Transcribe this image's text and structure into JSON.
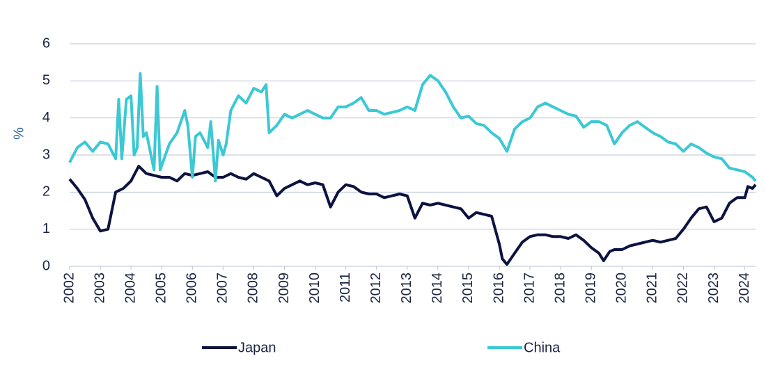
{
  "chart_data": {
    "type": "line",
    "y_label": "%",
    "xlim": [
      2002,
      2024.35
    ],
    "xticks": [
      2002,
      2003,
      2004,
      2005,
      2006,
      2007,
      2008,
      2009,
      2010,
      2011,
      2012,
      2013,
      2014,
      2015,
      2016,
      2017,
      2018,
      2019,
      2020,
      2021,
      2022,
      2023,
      2024
    ],
    "ylim": [
      0,
      6
    ],
    "yticks": [
      0,
      1,
      2,
      3,
      4,
      5,
      6
    ],
    "grid": true,
    "legend": "bottom",
    "series": [
      {
        "name": "Japan",
        "color": "#0d1340",
        "x": [
          2002.0,
          2002.25,
          2002.5,
          2002.75,
          2003.0,
          2003.25,
          2003.5,
          2003.75,
          2004.0,
          2004.25,
          2004.5,
          2004.75,
          2005.0,
          2005.25,
          2005.5,
          2005.75,
          2006.0,
          2006.25,
          2006.5,
          2006.75,
          2007.0,
          2007.25,
          2007.5,
          2007.75,
          2008.0,
          2008.25,
          2008.5,
          2008.75,
          2009.0,
          2009.25,
          2009.5,
          2009.75,
          2010.0,
          2010.25,
          2010.5,
          2010.75,
          2011.0,
          2011.25,
          2011.5,
          2011.75,
          2012.0,
          2012.25,
          2012.5,
          2012.75,
          2013.0,
          2013.25,
          2013.5,
          2013.75,
          2014.0,
          2014.25,
          2014.5,
          2014.75,
          2015.0,
          2015.25,
          2015.5,
          2015.75,
          2016.0,
          2016.1,
          2016.25,
          2016.5,
          2016.75,
          2017.0,
          2017.25,
          2017.5,
          2017.75,
          2018.0,
          2018.25,
          2018.5,
          2018.75,
          2019.0,
          2019.25,
          2019.4,
          2019.6,
          2019.75,
          2020.0,
          2020.25,
          2020.5,
          2020.75,
          2021.0,
          2021.25,
          2021.5,
          2021.75,
          2022.0,
          2022.25,
          2022.5,
          2022.75,
          2023.0,
          2023.25,
          2023.5,
          2023.75,
          2024.0,
          2024.1,
          2024.25,
          2024.35
        ],
        "values": [
          2.35,
          2.1,
          1.8,
          1.3,
          0.95,
          1.0,
          2.0,
          2.1,
          2.3,
          2.7,
          2.5,
          2.45,
          2.4,
          2.4,
          2.3,
          2.5,
          2.45,
          2.5,
          2.55,
          2.4,
          2.4,
          2.5,
          2.4,
          2.35,
          2.5,
          2.4,
          2.3,
          1.9,
          2.1,
          2.2,
          2.3,
          2.2,
          2.25,
          2.2,
          1.6,
          2.0,
          2.2,
          2.15,
          2.0,
          1.95,
          1.95,
          1.85,
          1.9,
          1.95,
          1.9,
          1.3,
          1.7,
          1.65,
          1.7,
          1.65,
          1.6,
          1.55,
          1.3,
          1.45,
          1.4,
          1.35,
          0.6,
          0.2,
          0.05,
          0.35,
          0.65,
          0.8,
          0.85,
          0.85,
          0.8,
          0.8,
          0.75,
          0.85,
          0.7,
          0.5,
          0.35,
          0.15,
          0.4,
          0.45,
          0.45,
          0.55,
          0.6,
          0.65,
          0.7,
          0.65,
          0.7,
          0.75,
          1.0,
          1.3,
          1.55,
          1.6,
          1.2,
          1.3,
          1.7,
          1.85,
          1.85,
          2.15,
          2.1,
          2.2
        ]
      },
      {
        "name": "China",
        "color": "#3cc8d4",
        "x": [
          2002.0,
          2002.25,
          2002.5,
          2002.75,
          2003.0,
          2003.25,
          2003.5,
          2003.6,
          2003.7,
          2003.85,
          2004.0,
          2004.1,
          2004.2,
          2004.3,
          2004.4,
          2004.5,
          2004.75,
          2004.85,
          2004.95,
          2005.25,
          2005.5,
          2005.75,
          2005.85,
          2006.0,
          2006.1,
          2006.25,
          2006.5,
          2006.6,
          2006.75,
          2006.85,
          2007.0,
          2007.1,
          2007.25,
          2007.5,
          2007.75,
          2008.0,
          2008.25,
          2008.4,
          2008.5,
          2008.75,
          2009.0,
          2009.25,
          2009.5,
          2009.75,
          2010.0,
          2010.25,
          2010.5,
          2010.75,
          2011.0,
          2011.25,
          2011.5,
          2011.75,
          2012.0,
          2012.25,
          2012.5,
          2012.75,
          2013.0,
          2013.25,
          2013.5,
          2013.75,
          2014.0,
          2014.25,
          2014.5,
          2014.75,
          2015.0,
          2015.25,
          2015.5,
          2015.75,
          2016.0,
          2016.25,
          2016.5,
          2016.75,
          2017.0,
          2017.25,
          2017.5,
          2017.75,
          2018.0,
          2018.25,
          2018.5,
          2018.75,
          2019.0,
          2019.25,
          2019.5,
          2019.75,
          2020.0,
          2020.25,
          2020.5,
          2020.75,
          2021.0,
          2021.25,
          2021.5,
          2021.75,
          2022.0,
          2022.25,
          2022.5,
          2022.75,
          2023.0,
          2023.25,
          2023.5,
          2023.75,
          2024.0,
          2024.25,
          2024.35
        ],
        "values": [
          2.8,
          3.2,
          3.35,
          3.1,
          3.35,
          3.3,
          2.9,
          4.5,
          2.9,
          4.5,
          4.6,
          3.0,
          3.2,
          5.2,
          3.5,
          3.6,
          2.6,
          4.85,
          2.6,
          3.3,
          3.6,
          4.2,
          3.8,
          2.4,
          3.5,
          3.6,
          3.2,
          3.9,
          2.3,
          3.4,
          3.0,
          3.3,
          4.2,
          4.6,
          4.4,
          4.8,
          4.7,
          4.9,
          3.6,
          3.8,
          4.1,
          4.0,
          4.1,
          4.2,
          4.1,
          4.0,
          4.0,
          4.3,
          4.3,
          4.4,
          4.55,
          4.2,
          4.2,
          4.1,
          4.15,
          4.2,
          4.3,
          4.2,
          4.9,
          5.15,
          5.0,
          4.7,
          4.3,
          4.0,
          4.05,
          3.85,
          3.8,
          3.6,
          3.45,
          3.1,
          3.7,
          3.9,
          4.0,
          4.3,
          4.4,
          4.3,
          4.2,
          4.1,
          4.05,
          3.75,
          3.9,
          3.9,
          3.8,
          3.3,
          3.6,
          3.8,
          3.9,
          3.75,
          3.6,
          3.5,
          3.35,
          3.3,
          3.1,
          3.3,
          3.2,
          3.05,
          2.95,
          2.9,
          2.65,
          2.6,
          2.55,
          2.4,
          2.3
        ]
      }
    ]
  }
}
